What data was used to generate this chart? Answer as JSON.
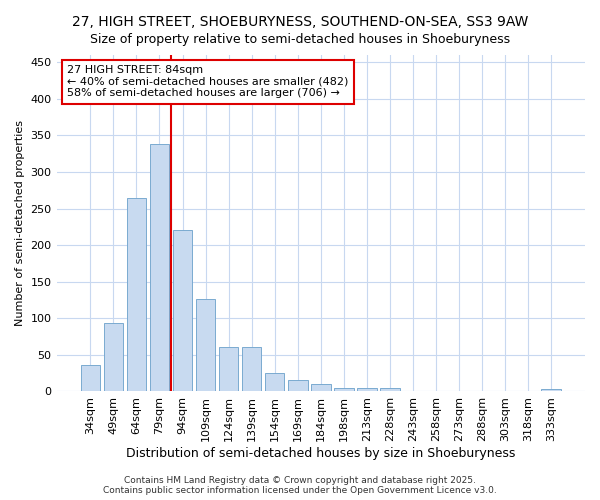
{
  "title1": "27, HIGH STREET, SHOEBURYNESS, SOUTHEND-ON-SEA, SS3 9AW",
  "title2": "Size of property relative to semi-detached houses in Shoeburyness",
  "xlabel": "Distribution of semi-detached houses by size in Shoeburyness",
  "ylabel": "Number of semi-detached properties",
  "categories": [
    "34sqm",
    "49sqm",
    "64sqm",
    "79sqm",
    "94sqm",
    "109sqm",
    "124sqm",
    "139sqm",
    "154sqm",
    "169sqm",
    "184sqm",
    "198sqm",
    "213sqm",
    "228sqm",
    "243sqm",
    "258sqm",
    "273sqm",
    "288sqm",
    "303sqm",
    "318sqm",
    "333sqm"
  ],
  "values": [
    36,
    93,
    265,
    338,
    221,
    126,
    61,
    61,
    25,
    16,
    10,
    5,
    5,
    5,
    0,
    0,
    0,
    0,
    0,
    0,
    3
  ],
  "bar_color": "#c8daf0",
  "bar_edge_color": "#7aaad0",
  "vline_pos": 3.5,
  "vline_color": "#dd0000",
  "annotation_line1": "27 HIGH STREET: 84sqm",
  "annotation_line2": "← 40% of semi-detached houses are smaller (482)",
  "annotation_line3": "58% of semi-detached houses are larger (706) →",
  "annotation_box_facecolor": "#ffffff",
  "annotation_box_edgecolor": "#dd0000",
  "bg_color": "#ffffff",
  "plot_bg_color": "#ffffff",
  "grid_color": "#c8d8f0",
  "ylim_max": 460,
  "yticks": [
    0,
    50,
    100,
    150,
    200,
    250,
    300,
    350,
    400,
    450
  ],
  "footer": "Contains HM Land Registry data © Crown copyright and database right 2025.\nContains public sector information licensed under the Open Government Licence v3.0.",
  "title1_fontsize": 10,
  "title2_fontsize": 9,
  "ylabel_fontsize": 8,
  "xlabel_fontsize": 9,
  "tick_fontsize": 8,
  "footer_fontsize": 6.5,
  "annot_fontsize": 8
}
